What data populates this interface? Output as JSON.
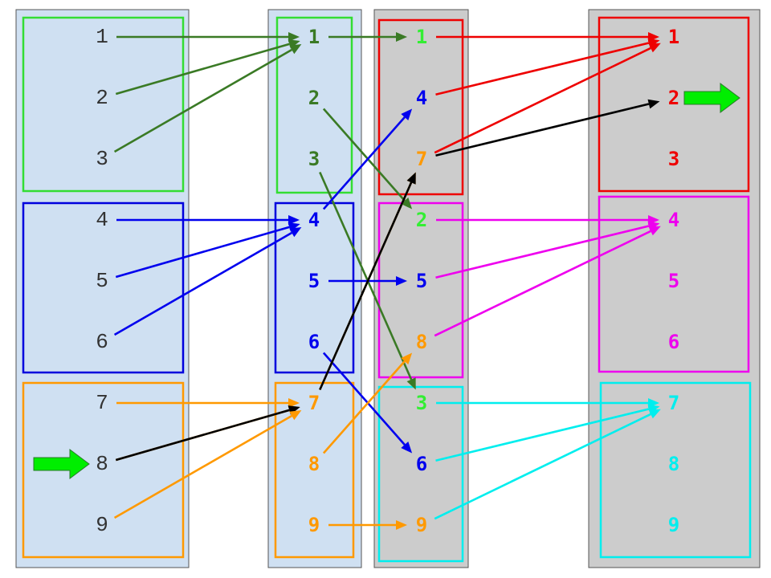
{
  "columns": [
    {
      "id": "col1",
      "fill": "#cfe0f2",
      "style": "mono",
      "boxes": [
        {
          "name": "group-1",
          "color": "#33dd33"
        },
        {
          "name": "group-2",
          "color": "#0000dd"
        },
        {
          "name": "group-3",
          "color": "#ff9900"
        }
      ],
      "labels": [
        {
          "text": "1",
          "color": "#333333"
        },
        {
          "text": "2",
          "color": "#333333"
        },
        {
          "text": "3",
          "color": "#333333"
        },
        {
          "text": "4",
          "color": "#333333"
        },
        {
          "text": "5",
          "color": "#333333"
        },
        {
          "text": "6",
          "color": "#333333"
        },
        {
          "text": "7",
          "color": "#333333"
        },
        {
          "text": "8",
          "color": "#333333"
        },
        {
          "text": "9",
          "color": "#333333"
        }
      ]
    },
    {
      "id": "col2",
      "fill": "#cfe0f2",
      "style": "bold",
      "boxes": [
        {
          "name": "group-1",
          "color": "#33dd33"
        },
        {
          "name": "group-2",
          "color": "#0000dd"
        },
        {
          "name": "group-3",
          "color": "#ff9900"
        }
      ],
      "labels": [
        {
          "text": "1",
          "color": "#3a7a25"
        },
        {
          "text": "2",
          "color": "#3a7a25"
        },
        {
          "text": "3",
          "color": "#3a7a25"
        },
        {
          "text": "4",
          "color": "#0000ee"
        },
        {
          "text": "5",
          "color": "#0000ee"
        },
        {
          "text": "6",
          "color": "#0000ee"
        },
        {
          "text": "7",
          "color": "#ff9900"
        },
        {
          "text": "8",
          "color": "#ff9900"
        },
        {
          "text": "9",
          "color": "#ff9900"
        }
      ]
    },
    {
      "id": "col3",
      "fill": "#cccccc",
      "style": "bold",
      "boxes": [
        {
          "name": "group-1",
          "color": "#ee0000"
        },
        {
          "name": "group-2",
          "color": "#ee00ee"
        },
        {
          "name": "group-3",
          "color": "#00eeee"
        }
      ],
      "labels": [
        {
          "text": "1",
          "color": "#33ee33"
        },
        {
          "text": "4",
          "color": "#0000ee"
        },
        {
          "text": "7",
          "color": "#ff9900"
        },
        {
          "text": "2",
          "color": "#33ee33"
        },
        {
          "text": "5",
          "color": "#0000ee"
        },
        {
          "text": "8",
          "color": "#ff9900"
        },
        {
          "text": "3",
          "color": "#33ee33"
        },
        {
          "text": "6",
          "color": "#0000ee"
        },
        {
          "text": "9",
          "color": "#ff9900"
        }
      ]
    },
    {
      "id": "col4",
      "fill": "#cccccc",
      "style": "bold",
      "boxes": [
        {
          "name": "group-1",
          "color": "#ee0000"
        },
        {
          "name": "group-2",
          "color": "#ee00ee"
        },
        {
          "name": "group-3",
          "color": "#00eeee"
        }
      ],
      "labels": [
        {
          "text": "1",
          "color": "#ee0000"
        },
        {
          "text": "2",
          "color": "#ee0000"
        },
        {
          "text": "3",
          "color": "#ee0000"
        },
        {
          "text": "4",
          "color": "#ee00ee"
        },
        {
          "text": "5",
          "color": "#ee00ee"
        },
        {
          "text": "6",
          "color": "#ee00ee"
        },
        {
          "text": "7",
          "color": "#00eeee"
        },
        {
          "text": "8",
          "color": "#00eeee"
        },
        {
          "text": "9",
          "color": "#00eeee"
        }
      ]
    }
  ],
  "arrows": [
    {
      "from": "col1-1",
      "to": "col2-1",
      "color": "#3a7a25"
    },
    {
      "from": "col1-2",
      "to": "col2-1",
      "color": "#3a7a25"
    },
    {
      "from": "col1-3",
      "to": "col2-1",
      "color": "#3a7a25"
    },
    {
      "from": "col1-4",
      "to": "col2-4",
      "color": "#0000ee"
    },
    {
      "from": "col1-5",
      "to": "col2-4",
      "color": "#0000ee"
    },
    {
      "from": "col1-6",
      "to": "col2-4",
      "color": "#0000ee"
    },
    {
      "from": "col1-7",
      "to": "col2-7",
      "color": "#ff9900"
    },
    {
      "from": "col1-8",
      "to": "col2-7",
      "color": "#ff9900"
    },
    {
      "from": "col1-8",
      "to": "col2-7",
      "color": "#000000"
    },
    {
      "from": "col1-9",
      "to": "col2-7",
      "color": "#ff9900"
    },
    {
      "from": "col2-1",
      "to": "col3-1",
      "color": "#3a7a25"
    },
    {
      "from": "col2-2",
      "to": "col3-4",
      "color": "#3a7a25"
    },
    {
      "from": "col2-3",
      "to": "col3-7",
      "color": "#3a7a25"
    },
    {
      "from": "col2-4",
      "to": "col3-2",
      "color": "#0000ee"
    },
    {
      "from": "col2-5",
      "to": "col3-5",
      "color": "#0000ee"
    },
    {
      "from": "col2-6",
      "to": "col3-8",
      "color": "#0000ee"
    },
    {
      "from": "col2-7",
      "to": "col3-3",
      "color": "#ff9900"
    },
    {
      "from": "col2-7",
      "to": "col3-3",
      "color": "#000000"
    },
    {
      "from": "col2-8",
      "to": "col3-6",
      "color": "#ff9900"
    },
    {
      "from": "col2-9",
      "to": "col3-9",
      "color": "#ff9900"
    },
    {
      "from": "col3-1",
      "to": "col4-1",
      "color": "#ee0000"
    },
    {
      "from": "col3-2",
      "to": "col4-1",
      "color": "#ee0000"
    },
    {
      "from": "col3-3",
      "to": "col4-1",
      "color": "#ee0000"
    },
    {
      "from": "col3-3",
      "to": "col4-2",
      "color": "#000000"
    },
    {
      "from": "col3-4",
      "to": "col4-4",
      "color": "#ee00ee"
    },
    {
      "from": "col3-5",
      "to": "col4-4",
      "color": "#ee00ee"
    },
    {
      "from": "col3-6",
      "to": "col4-4",
      "color": "#ee00ee"
    },
    {
      "from": "col3-7",
      "to": "col4-7",
      "color": "#00eeee"
    },
    {
      "from": "col3-8",
      "to": "col4-7",
      "color": "#00eeee"
    },
    {
      "from": "col3-9",
      "to": "col4-7",
      "color": "#00eeee"
    }
  ],
  "markers": [
    {
      "name": "start-marker",
      "at": "col1-8",
      "color": "#00ee00"
    },
    {
      "name": "end-marker",
      "at": "col4-2",
      "color": "#00ee00"
    }
  ]
}
